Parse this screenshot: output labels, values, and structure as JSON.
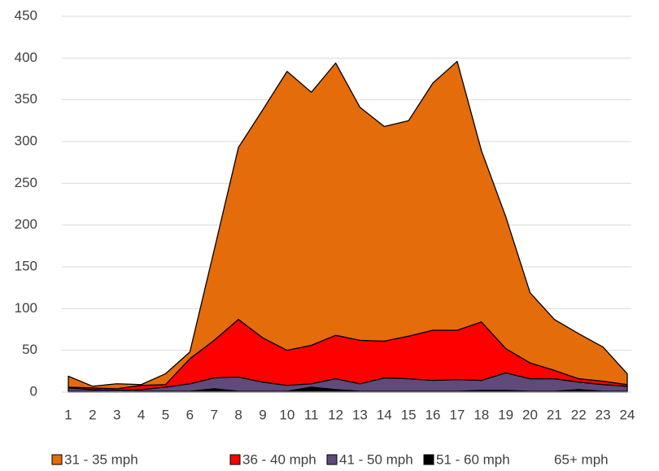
{
  "chart_data": {
    "type": "stacked_area",
    "categories": [
      "1",
      "2",
      "3",
      "4",
      "5",
      "6",
      "7",
      "8",
      "9",
      "10",
      "11",
      "12",
      "13",
      "14",
      "15",
      "16",
      "17",
      "18",
      "19",
      "20",
      "21",
      "22",
      "23",
      "24"
    ],
    "series": [
      {
        "name": "31 - 35 mph",
        "color": "#e46c0a",
        "values": [
          13,
          2,
          6,
          1,
          13,
          8,
          108,
          206,
          273,
          334,
          303,
          326,
          279,
          257,
          258,
          296,
          322,
          205,
          158,
          84,
          61,
          54,
          41,
          13
        ]
      },
      {
        "name": "36 - 40 mph",
        "color": "#ff0000",
        "values": [
          1,
          2,
          2,
          5,
          3,
          30,
          45,
          69,
          53,
          42,
          46,
          52,
          52,
          44,
          51,
          60,
          59,
          70,
          29,
          19,
          10,
          4,
          4,
          2
        ]
      },
      {
        "name": "41 - 50 mph",
        "color": "#604a7b",
        "values": [
          4,
          2,
          2,
          2,
          5,
          9,
          13,
          17,
          11,
          7,
          4,
          13,
          9,
          16,
          15,
          13,
          14,
          12,
          21,
          15,
          15,
          9,
          8,
          6
        ]
      },
      {
        "name": "51 - 60 mph",
        "color": "#000000",
        "values": [
          1,
          1,
          0,
          1,
          1,
          1,
          4,
          1,
          1,
          1,
          6,
          3,
          1,
          1,
          1,
          1,
          1,
          2,
          2,
          1,
          1,
          3,
          1,
          1
        ]
      },
      {
        "name": "65+ mph",
        "color": "#ffffff",
        "values": [
          0,
          0,
          0,
          0,
          0,
          0,
          0,
          0,
          0,
          0,
          0,
          0,
          0,
          0,
          0,
          0,
          0,
          0,
          0,
          0,
          0,
          0,
          0,
          0
        ]
      }
    ],
    "ylim": [
      0,
      450
    ],
    "yticks": [
      0,
      50,
      100,
      150,
      200,
      250,
      300,
      350,
      400,
      450
    ],
    "grid": true,
    "legend": "bottom"
  }
}
